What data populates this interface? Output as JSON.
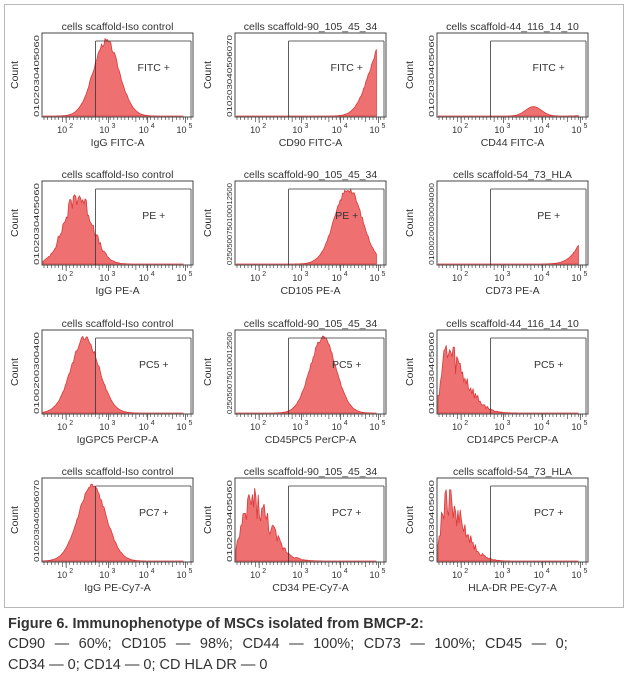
{
  "figure": {
    "panels": [
      {
        "title": "cells scaffold-Iso control",
        "xlabel": "IgG FITC-A",
        "ylabel": "Count",
        "gate": "FITC +",
        "yticks": "0102030405060",
        "peak": 0.45,
        "width": 0.13,
        "shape": "normal"
      },
      {
        "title": "cells scaffold-90_105_45_34",
        "xlabel": "CD90 FITC-A",
        "ylabel": "Count",
        "gate": "FITC +",
        "yticks": "010203040506070",
        "peak": 1.05,
        "width": 0.14,
        "shape": "normal"
      },
      {
        "title": "cells scaffold-44_116_14_10",
        "xlabel": "CD44 FITC-A",
        "ylabel": "Count",
        "gate": "FITC +",
        "yticks": "0102030405060",
        "peak": 1.45,
        "width": 0.12,
        "shape": "skew"
      },
      {
        "title": "cells scaffold-Iso control",
        "xlabel": "IgG PE-A",
        "ylabel": "Count",
        "gate": "PE +",
        "yticks": "0102030405060",
        "peak": 0.25,
        "width": 0.14,
        "shape": "noisy"
      },
      {
        "title": "cells scaffold-90_105_45_34",
        "xlabel": "CD105 PE-A",
        "ylabel": "Count",
        "gate": "PE +",
        "yticks": "0250500750100012500",
        "peak": 0.8,
        "width": 0.14,
        "shape": "normal"
      },
      {
        "title": "cells scaffold-54_73_HLA",
        "xlabel": "CD73 PE-A",
        "ylabel": "Count",
        "gate": "PE +",
        "yticks": "01000200030004000",
        "peak": 1.2,
        "width": 0.17,
        "shape": "normal"
      },
      {
        "title": "cells scaffold-Iso control",
        "xlabel": "IgGPC5 PerCP-A",
        "ylabel": "Count",
        "gate": "PC5 +",
        "yticks": "0100200300400",
        "peak": 0.3,
        "width": 0.14,
        "shape": "normal"
      },
      {
        "title": "cells scaffold-90_105_45_34",
        "xlabel": "CD45PC5 PerCP-A",
        "ylabel": "Count",
        "gate": "PC5 +",
        "yticks": "0250500750100012500",
        "peak": 0.62,
        "width": 0.13,
        "shape": "normal"
      },
      {
        "title": "cells scaffold-44_116_14_10",
        "xlabel": "CD14PC5 PerCP-A",
        "ylabel": "Count",
        "gate": "PC5 +",
        "yticks": "0102030405060",
        "peak": 0.05,
        "width": 0.22,
        "shape": "decay"
      },
      {
        "title": "cells scaffold-Iso control",
        "xlabel": "IgG PE-Cy7-A",
        "ylabel": "Count",
        "gate": "PC7 +",
        "yticks": "010203040506070",
        "peak": 0.35,
        "width": 0.14,
        "shape": "normal"
      },
      {
        "title": "cells scaffold-90_105_45_34",
        "xlabel": "CD34 PE-Cy7-A",
        "ylabel": "Count",
        "gate": "PC7 +",
        "yticks": "0102030405060",
        "peak": 0.1,
        "width": 0.22,
        "shape": "decay"
      },
      {
        "title": "cells scaffold-54_73_HLA",
        "xlabel": "HLA-DR PE-Cy7-A",
        "ylabel": "Count",
        "gate": "PC7 +",
        "yticks": "0102030405060",
        "peak": 0.05,
        "width": 0.2,
        "shape": "decay"
      }
    ],
    "xtick_labels": [
      "10",
      "10",
      "10",
      "10"
    ],
    "xtick_exponents": [
      "2",
      "3",
      "4",
      "5"
    ],
    "colors": {
      "histogram_fill": "#ee7070",
      "histogram_edge": "#d83a3a",
      "axis": "#333333"
    }
  },
  "caption": {
    "title": "Figure 6. Immunophenotype of MSCs isolated from BMCP-2:",
    "line1": "CD90 — 60%; CD105 — 98%; CD44 — 100%; CD73 — 100%; CD45 — 0;",
    "line2": "CD34 — 0; CD14 — 0; CD HLA DR — 0"
  }
}
